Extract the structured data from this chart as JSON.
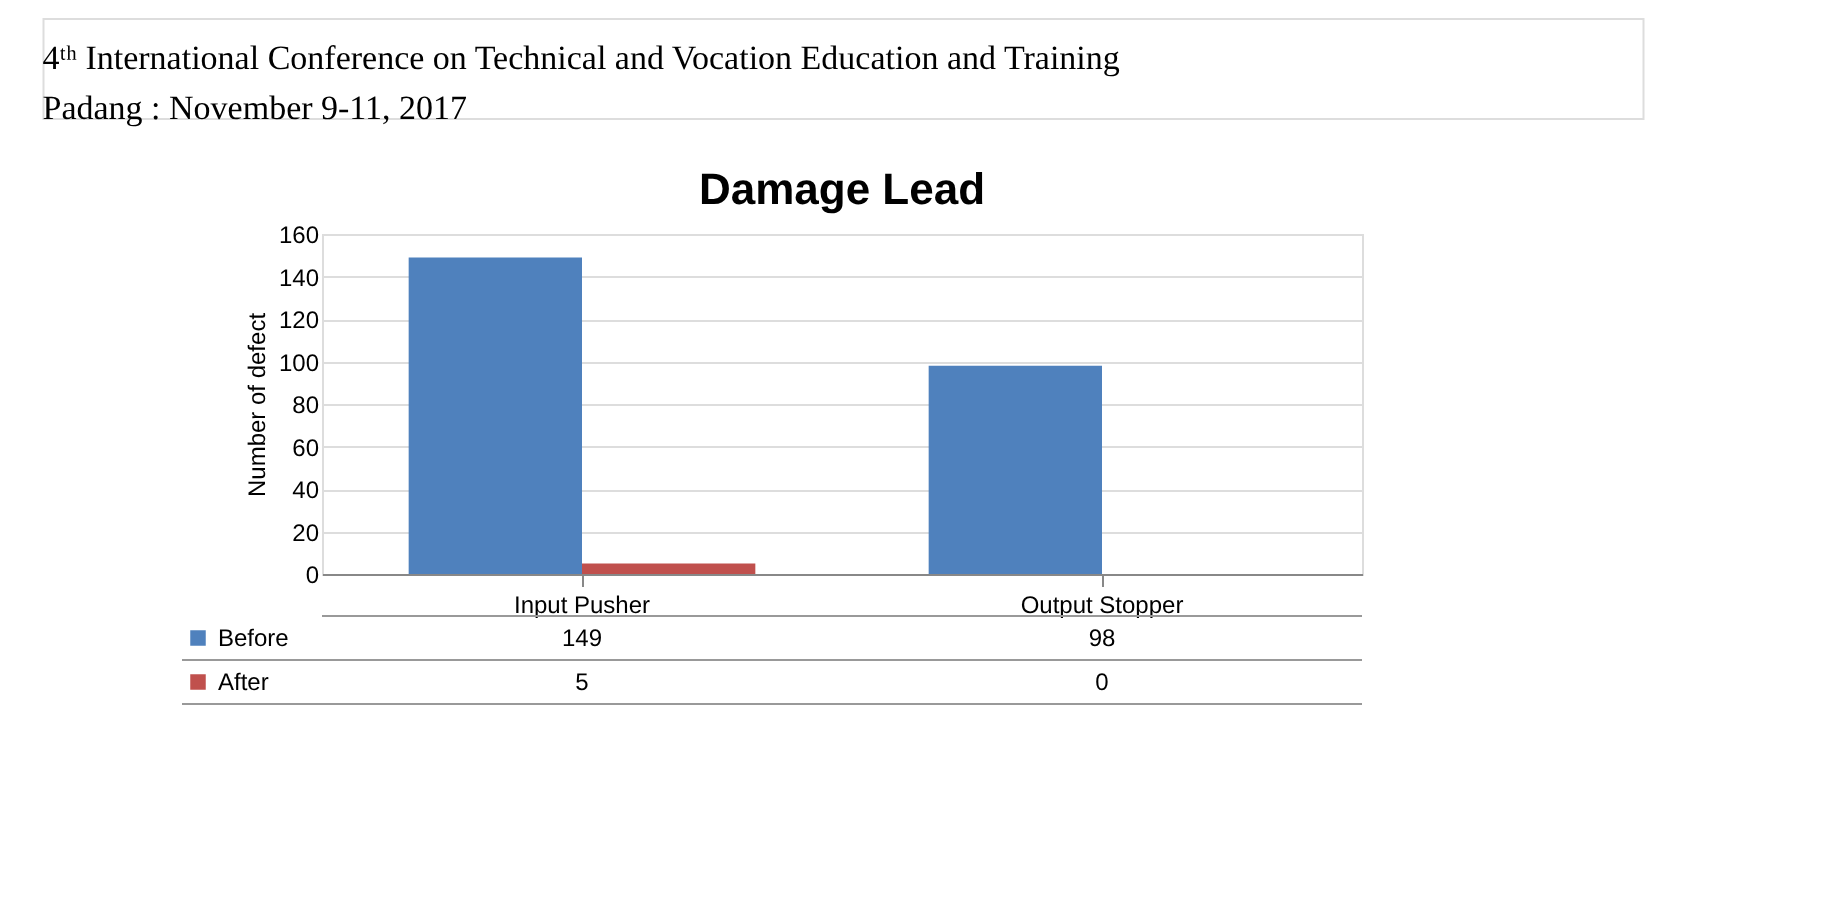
{
  "chart_data": {
    "type": "bar",
    "title": "Damage Lead",
    "ylabel": "Number of defect",
    "categories": [
      "Input Pusher",
      "Output Stopper"
    ],
    "series": [
      {
        "name": "Before",
        "color": "#4f81bd",
        "values": [
          149,
          98
        ]
      },
      {
        "name": "After",
        "color": "#c0504d",
        "values": [
          5,
          0
        ]
      }
    ],
    "ylim": [
      0,
      160
    ],
    "yticks": [
      0,
      20,
      40,
      60,
      80,
      100,
      120,
      140,
      160
    ],
    "grid": "y",
    "data_labels": true,
    "legend": "bottom left",
    "annotations": [
      "4ᵗʰ International Conference on Technical and Vocation Education and Training",
      "Padang : November 9-11, 2017"
    ]
  }
}
